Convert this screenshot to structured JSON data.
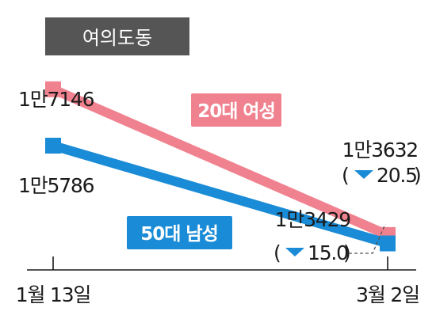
{
  "chart_data": {
    "type": "line",
    "title": "여의도동",
    "categories": [
      "1월 13일",
      "3월 2일"
    ],
    "ylim": [
      13000,
      18000
    ],
    "grid": false,
    "series": [
      {
        "name": "20대 여성",
        "color": "#f0828f",
        "values": [
          17146,
          13632
        ],
        "value_labels": [
          "1만7146",
          "1만3632"
        ],
        "change_label": "20.5"
      },
      {
        "name": "50대 남성",
        "color": "#1a8bd6",
        "values": [
          15786,
          13429
        ],
        "value_labels": [
          "1만5786",
          "1만3429"
        ],
        "change_label": "15.0"
      }
    ]
  }
}
